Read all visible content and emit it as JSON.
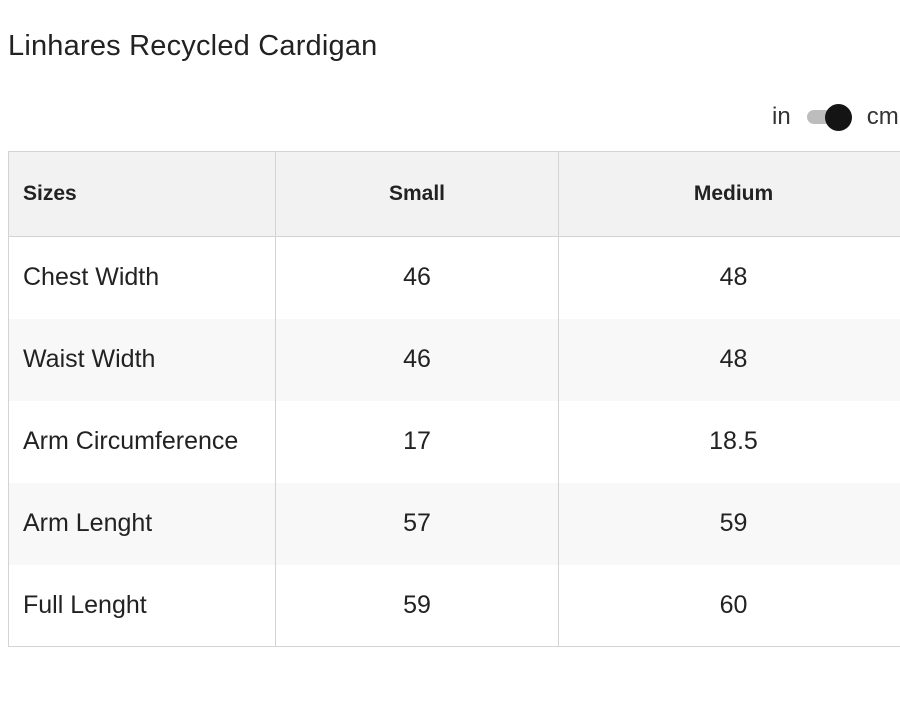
{
  "product": {
    "title": "Linhares Recycled Cardigan"
  },
  "unit_toggle": {
    "left_label": "in",
    "right_label": "cm",
    "selected": "cm"
  },
  "table": {
    "headers": [
      "Sizes",
      "Small",
      "Medium"
    ],
    "rows": [
      {
        "label": "Chest Width",
        "small": "46",
        "medium": "48"
      },
      {
        "label": "Waist Width",
        "small": "46",
        "medium": "48"
      },
      {
        "label": "Arm Circumference",
        "small": "17",
        "medium": "18.5"
      },
      {
        "label": "Arm Lenght",
        "small": "57",
        "medium": "59"
      },
      {
        "label": "Full Lenght",
        "small": "59",
        "medium": "60"
      }
    ]
  }
}
